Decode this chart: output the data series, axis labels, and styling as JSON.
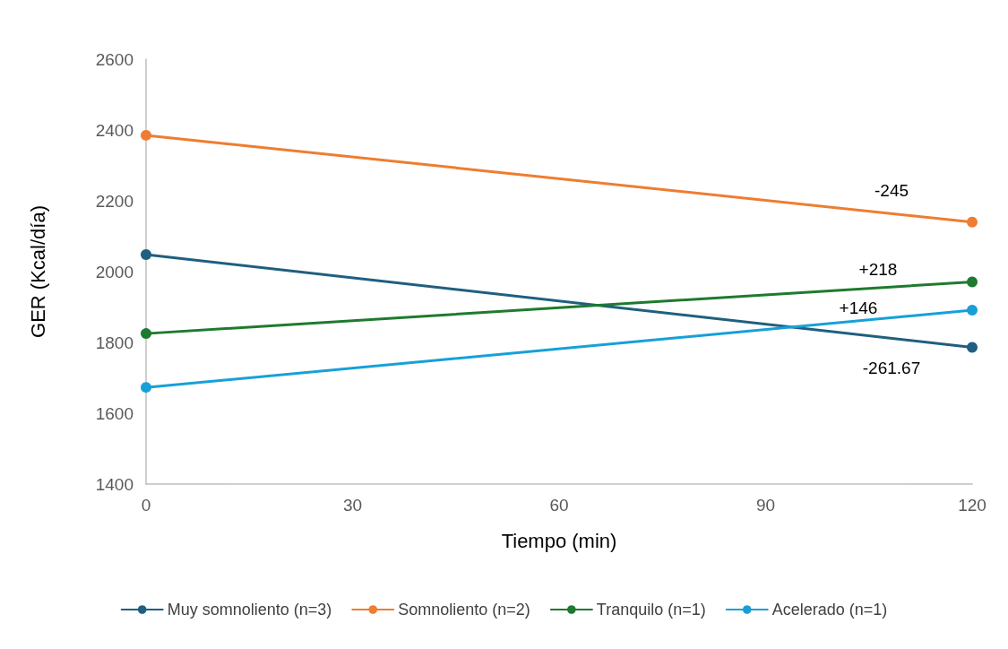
{
  "chart_data": {
    "type": "line",
    "xlabel": "Tiempo (min)",
    "ylabel": "GER (Kcal/día)",
    "x": [
      0,
      120
    ],
    "xlim": [
      0,
      120
    ],
    "xticks": [
      0,
      30,
      60,
      90,
      120
    ],
    "ylim": [
      1400,
      2600
    ],
    "yticks": [
      1400,
      1600,
      1800,
      2000,
      2200,
      2400,
      2600
    ],
    "series": [
      {
        "name": "Muy somnoliento (n=3)",
        "color": "#1f5f7f",
        "values": [
          2048,
          1786
        ]
      },
      {
        "name": "Somnoliento (n=2)",
        "color": "#ee7d31",
        "values": [
          2385,
          2140
        ]
      },
      {
        "name": "Tranquilo (n=1)",
        "color": "#1e7a2e",
        "values": [
          1825,
          1971
        ]
      },
      {
        "name": "Acelerado (n=1)",
        "color": "#17a0d8",
        "values": [
          1673,
          1891
        ]
      }
    ],
    "annotations": [
      "-245",
      "+218",
      "+146",
      "-261.67"
    ],
    "grid": false,
    "legend": "bottom",
    "marker": "circle",
    "line_style": "solid"
  }
}
